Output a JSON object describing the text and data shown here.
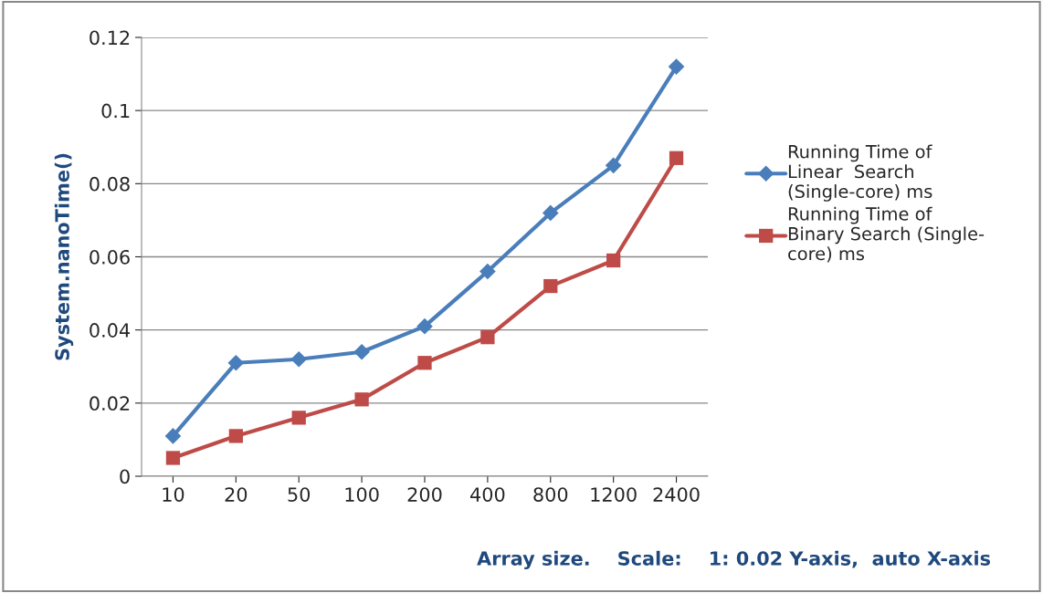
{
  "chart_data": {
    "type": "line",
    "ylabel": "System.nanoTime()",
    "xlabel": "Array size.    Scale:    1: 0.02 Y-axis,  auto X-axis",
    "categories": [
      "10",
      "20",
      "50",
      "100",
      "200",
      "400",
      "800",
      "1200",
      "2400"
    ],
    "series": [
      {
        "name": "Running Time of\nLinear  Search\n(Single-core) ms",
        "color": "#4a7ebb",
        "marker": "diamond",
        "values": [
          0.011,
          0.031,
          0.032,
          0.034,
          0.041,
          0.056,
          0.072,
          0.085,
          0.112
        ]
      },
      {
        "name": "Running Time of\nBinary Search (Single-\ncore) ms",
        "color": "#be4b48",
        "marker": "square",
        "values": [
          0.005,
          0.011,
          0.016,
          0.021,
          0.031,
          0.038,
          0.052,
          0.059,
          0.087
        ]
      }
    ],
    "ylim": [
      0,
      0.12
    ],
    "yticks": [
      0,
      0.02,
      0.04,
      0.06,
      0.08,
      0.1,
      0.12
    ],
    "grid": "y",
    "legend": "right",
    "line_style": "solid"
  }
}
